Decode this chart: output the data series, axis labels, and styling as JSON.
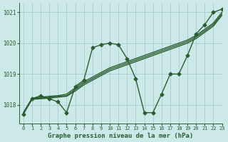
{
  "xlabel": "Graphe pression niveau de la mer (hPa)",
  "xlim": [
    -0.5,
    23
  ],
  "ylim": [
    1017.4,
    1021.3
  ],
  "yticks": [
    1018,
    1019,
    1020,
    1021
  ],
  "xticks": [
    0,
    1,
    2,
    3,
    4,
    5,
    6,
    7,
    8,
    9,
    10,
    11,
    12,
    13,
    14,
    15,
    16,
    17,
    18,
    19,
    20,
    21,
    22,
    23
  ],
  "background_color": "#cce8e8",
  "grid_color": "#aacccc",
  "line_color": "#2a5e30",
  "jagged": [
    1017.7,
    1018.2,
    1018.3,
    1018.2,
    1018.1,
    1017.75,
    1018.6,
    1018.8,
    1019.85,
    1019.95,
    1020.0,
    1019.95,
    1019.5,
    1018.85,
    1017.75,
    1017.75,
    1018.35,
    1019.0,
    1019.0,
    1019.6,
    1020.3,
    1020.6,
    1021.0,
    1021.1
  ],
  "trend1": [
    1017.75,
    1018.2,
    1018.22,
    1018.25,
    1018.28,
    1018.3,
    1018.5,
    1018.7,
    1018.85,
    1019.0,
    1019.15,
    1019.25,
    1019.35,
    1019.45,
    1019.55,
    1019.65,
    1019.75,
    1019.85,
    1019.95,
    1020.05,
    1020.2,
    1020.4,
    1020.6,
    1020.95
  ],
  "trend2": [
    1017.75,
    1018.22,
    1018.25,
    1018.28,
    1018.3,
    1018.35,
    1018.55,
    1018.75,
    1018.9,
    1019.05,
    1019.2,
    1019.3,
    1019.4,
    1019.5,
    1019.6,
    1019.7,
    1019.8,
    1019.9,
    1020.0,
    1020.1,
    1020.25,
    1020.45,
    1020.65,
    1021.0
  ],
  "trend3": [
    1017.72,
    1018.18,
    1018.2,
    1018.22,
    1018.25,
    1018.28,
    1018.45,
    1018.65,
    1018.8,
    1018.95,
    1019.1,
    1019.2,
    1019.3,
    1019.4,
    1019.5,
    1019.6,
    1019.7,
    1019.8,
    1019.9,
    1020.0,
    1020.15,
    1020.35,
    1020.55,
    1020.9
  ],
  "marker": "D",
  "markersize": 2.5,
  "linewidth": 1.0
}
